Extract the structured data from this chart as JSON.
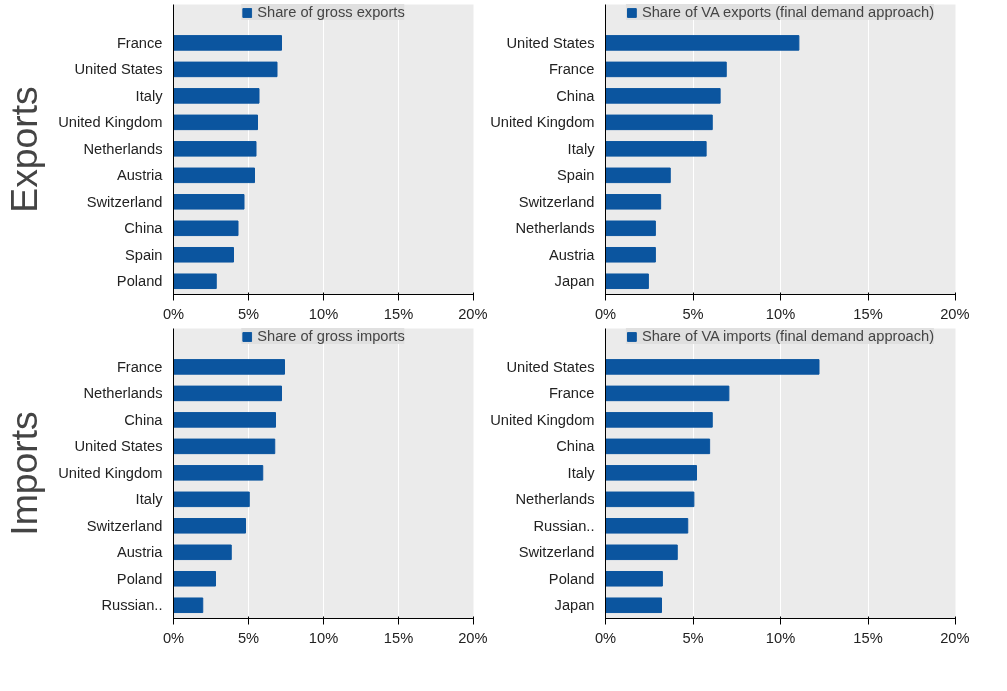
{
  "chart_data": [
    {
      "type": "bar",
      "orientation": "horizontal",
      "ylabel": "Exports",
      "legend": "top",
      "grid": "x",
      "categories": [
        "France",
        "United States",
        "Italy",
        "United Kingdom",
        "Netherlands",
        "Austria",
        "Switzerland",
        "China",
        "Spain",
        "Poland"
      ],
      "series": [
        {
          "name": "Share of gross exports",
          "color": "#0b559f",
          "values": [
            7.2,
            6.9,
            5.7,
            5.6,
            5.5,
            5.4,
            4.7,
            4.3,
            4.0,
            2.85
          ]
        }
      ],
      "xlim": [
        0,
        20
      ],
      "xticks": [
        {
          "value": 0,
          "label": "0%"
        },
        {
          "value": 5,
          "label": "5%"
        },
        {
          "value": 10,
          "label": "10%"
        },
        {
          "value": 15,
          "label": "15%"
        },
        {
          "value": 20,
          "label": "20%"
        }
      ]
    },
    {
      "type": "bar",
      "orientation": "horizontal",
      "legend": "top",
      "grid": "x",
      "categories": [
        "United States",
        "France",
        "China",
        "United Kingdom",
        "Italy",
        "Spain",
        "Switzerland",
        "Netherlands",
        "Austria",
        "Japan"
      ],
      "series": [
        {
          "name": "Share of VA exports (final demand approach)",
          "color": "#0b559f",
          "values": [
            11.05,
            6.9,
            6.55,
            6.1,
            5.75,
            3.7,
            3.15,
            2.85,
            2.85,
            2.45
          ]
        }
      ],
      "xlim": [
        0,
        20
      ],
      "xticks": [
        {
          "value": 0,
          "label": "0%"
        },
        {
          "value": 5,
          "label": "5%"
        },
        {
          "value": 10,
          "label": "10%"
        },
        {
          "value": 15,
          "label": "15%"
        },
        {
          "value": 20,
          "label": "20%"
        }
      ]
    },
    {
      "type": "bar",
      "orientation": "horizontal",
      "ylabel": "Imports",
      "legend": "top",
      "grid": "x",
      "categories": [
        "France",
        "Netherlands",
        "China",
        "United States",
        "United Kingdom",
        "Italy",
        "Switzerland",
        "Austria",
        "Poland",
        "Russian.."
      ],
      "series": [
        {
          "name": "Share of gross imports",
          "color": "#0b559f",
          "values": [
            7.4,
            7.2,
            6.8,
            6.75,
            5.95,
            5.05,
            4.8,
            3.85,
            2.8,
            1.95
          ]
        }
      ],
      "xlim": [
        0,
        20
      ],
      "xticks": [
        {
          "value": 0,
          "label": "0%"
        },
        {
          "value": 5,
          "label": "5%"
        },
        {
          "value": 10,
          "label": "10%"
        },
        {
          "value": 15,
          "label": "15%"
        },
        {
          "value": 20,
          "label": "20%"
        }
      ]
    },
    {
      "type": "bar",
      "orientation": "horizontal",
      "legend": "top",
      "grid": "x",
      "categories": [
        "United States",
        "France",
        "United Kingdom",
        "China",
        "Italy",
        "Netherlands",
        "Russian..",
        "Switzerland",
        "Poland",
        "Japan"
      ],
      "series": [
        {
          "name": "Share of VA imports (final demand approach)",
          "color": "#0b559f",
          "values": [
            12.2,
            7.05,
            6.1,
            5.95,
            5.2,
            5.05,
            4.7,
            4.1,
            3.25,
            3.2
          ]
        }
      ],
      "xlim": [
        0,
        20
      ],
      "xticks": [
        {
          "value": 0,
          "label": "0%"
        },
        {
          "value": 5,
          "label": "5%"
        },
        {
          "value": 10,
          "label": "10%"
        },
        {
          "value": 15,
          "label": "15%"
        },
        {
          "value": 20,
          "label": "20%"
        }
      ]
    }
  ]
}
